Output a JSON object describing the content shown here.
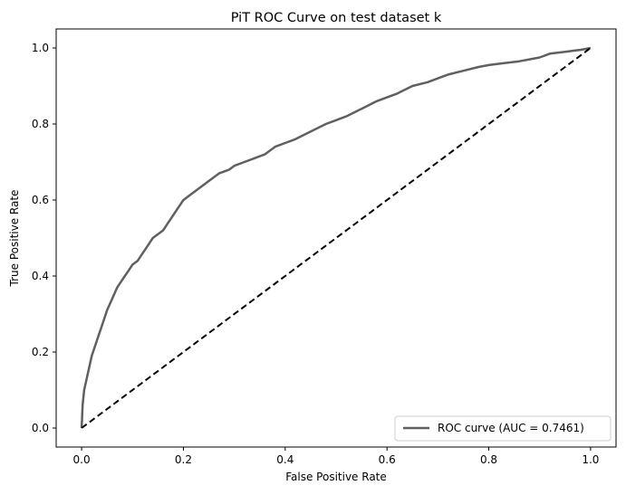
{
  "chart_data": {
    "type": "line",
    "title": "PiT ROC Curve on test dataset k",
    "xlabel": "False Positive Rate",
    "ylabel": "True Positive Rate",
    "xlim": [
      -0.05,
      1.05
    ],
    "ylim": [
      -0.05,
      1.05
    ],
    "xticks": [
      0.0,
      0.2,
      0.4,
      0.6,
      0.8,
      1.0
    ],
    "yticks": [
      0.0,
      0.2,
      0.4,
      0.6,
      0.8,
      1.0
    ],
    "xtick_labels": [
      "0.0",
      "0.2",
      "0.4",
      "0.6",
      "0.8",
      "1.0"
    ],
    "ytick_labels": [
      "0.0",
      "0.2",
      "0.4",
      "0.6",
      "0.8",
      "1.0"
    ],
    "grid": false,
    "legend_position": "lower-right",
    "series": [
      {
        "name": "ROC curve (AUC = 0.7461)",
        "color": "#606060",
        "style": "solid",
        "x": [
          0.0,
          0.002,
          0.005,
          0.01,
          0.015,
          0.02,
          0.03,
          0.04,
          0.05,
          0.06,
          0.07,
          0.08,
          0.09,
          0.1,
          0.11,
          0.12,
          0.13,
          0.14,
          0.15,
          0.16,
          0.17,
          0.18,
          0.19,
          0.2,
          0.21,
          0.22,
          0.23,
          0.24,
          0.25,
          0.27,
          0.29,
          0.3,
          0.32,
          0.34,
          0.36,
          0.38,
          0.4,
          0.42,
          0.45,
          0.48,
          0.5,
          0.52,
          0.55,
          0.58,
          0.6,
          0.62,
          0.65,
          0.68,
          0.7,
          0.72,
          0.75,
          0.78,
          0.8,
          0.83,
          0.86,
          0.88,
          0.9,
          0.92,
          0.95,
          0.98,
          1.0
        ],
        "y": [
          0.0,
          0.06,
          0.1,
          0.13,
          0.16,
          0.19,
          0.23,
          0.27,
          0.31,
          0.34,
          0.37,
          0.39,
          0.41,
          0.43,
          0.44,
          0.46,
          0.48,
          0.5,
          0.51,
          0.52,
          0.54,
          0.56,
          0.58,
          0.6,
          0.61,
          0.62,
          0.63,
          0.64,
          0.65,
          0.67,
          0.68,
          0.69,
          0.7,
          0.71,
          0.72,
          0.74,
          0.75,
          0.76,
          0.78,
          0.8,
          0.81,
          0.82,
          0.84,
          0.86,
          0.87,
          0.88,
          0.9,
          0.91,
          0.92,
          0.93,
          0.94,
          0.95,
          0.955,
          0.96,
          0.965,
          0.97,
          0.975,
          0.985,
          0.99,
          0.995,
          1.0
        ]
      },
      {
        "name": "",
        "color": "#000000",
        "style": "dashed",
        "x": [
          0.0,
          1.0
        ],
        "y": [
          0.0,
          1.0
        ]
      }
    ]
  }
}
